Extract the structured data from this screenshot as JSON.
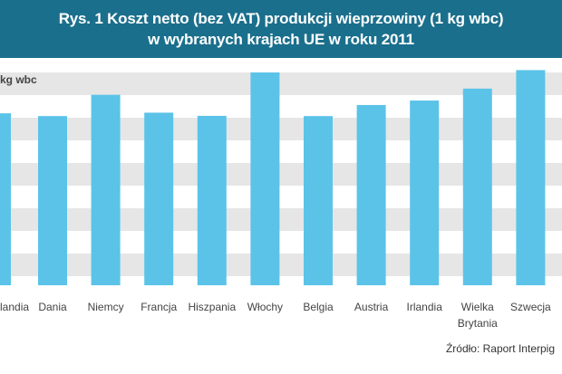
{
  "title": {
    "line1": "Rys. 1 Koszt netto (bez VAT) produkcji wieprzowiny (1 kg wbc)",
    "line2": "w wybranych krajach UE w roku 2011"
  },
  "source": "Źródło: Raport Interpig",
  "chart_data": {
    "type": "bar",
    "ylabel": "kg wbc",
    "ylim": [
      0,
      1
    ],
    "grid": true,
    "bar_color": "#5bc3e8",
    "band_color": "#e6e6e6",
    "categories": [
      "landia",
      "Dania",
      "Niemcy",
      "Francja",
      "Hiszpania",
      "Włochy",
      "Belgia",
      "Austria",
      "Irlandia",
      "Wielka\nBrytania",
      "Szwecja"
    ],
    "values": [
      0.808,
      0.795,
      0.895,
      0.811,
      0.796,
      1.0,
      0.795,
      0.847,
      0.868,
      0.924,
      1.011
    ]
  }
}
